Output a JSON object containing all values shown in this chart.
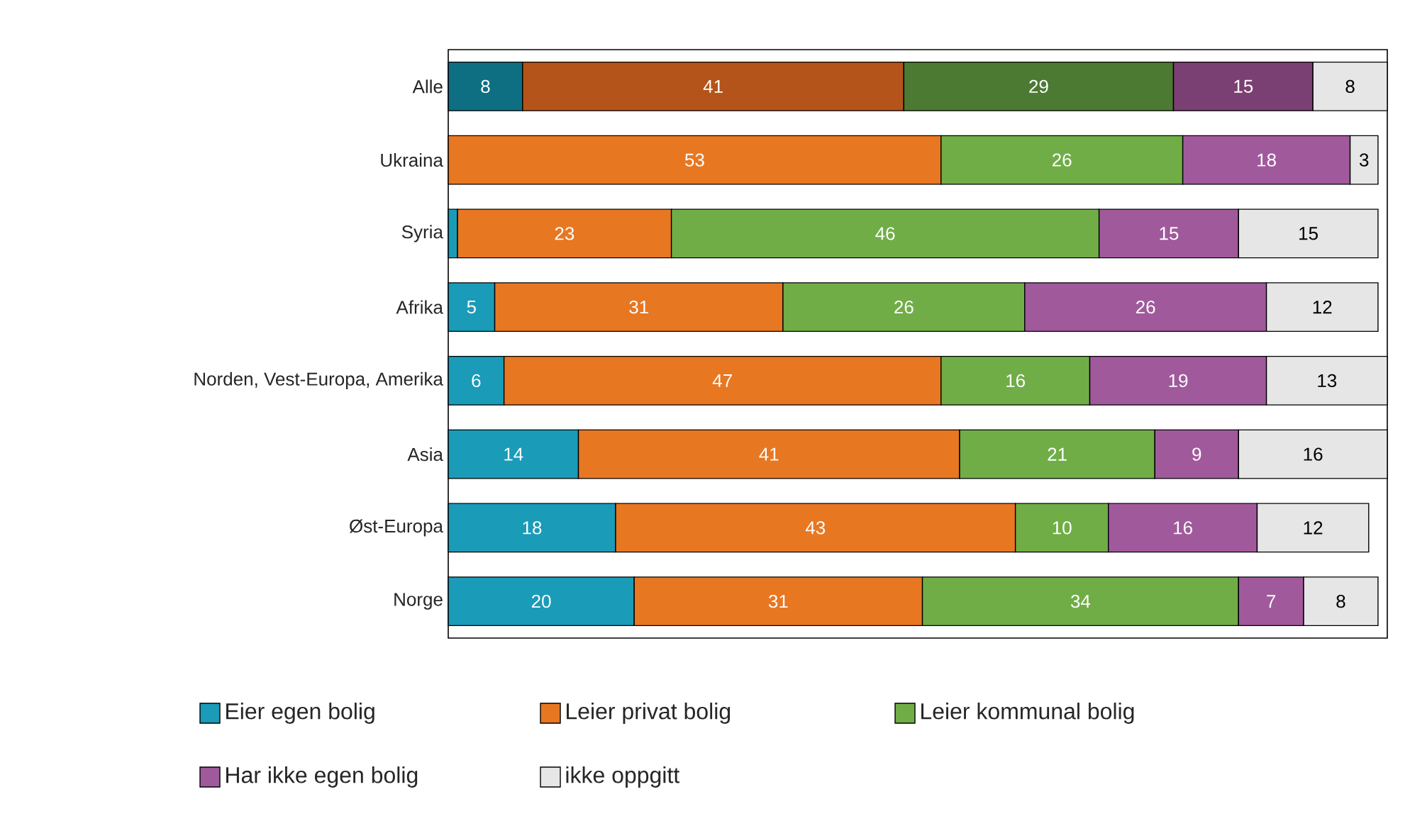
{
  "chart_data": {
    "type": "bar",
    "orientation": "horizontal",
    "stacked": true,
    "legend": "bottom",
    "tick_labels": "y",
    "categories": [
      "Alle",
      "Ukraina",
      "Syria",
      "Afrika",
      "Norden, Vest-Europa, Amerika",
      "Asia",
      "Øst-Europa",
      "Norge"
    ],
    "series": [
      {
        "name": "Eier egen bolig",
        "color": "#1a9bb8",
        "colors": [
          "#0e6f82",
          "#1a9bb8",
          "#1a9bb8",
          "#1a9bb8",
          "#1a9bb8",
          "#1a9bb8",
          "#1a9bb8",
          "#1a9bb8"
        ],
        "values": [
          8,
          null,
          1,
          5,
          6,
          14,
          18,
          20
        ],
        "value_labels": [
          "8",
          null,
          null,
          "5",
          "6",
          "14",
          "18",
          "20"
        ]
      },
      {
        "name": "Leier privat bolig",
        "color": "#e87722",
        "colors": [
          "#b5541a",
          "#e87722",
          "#e87722",
          "#e87722",
          "#e87722",
          "#e87722",
          "#e87722",
          "#e87722"
        ],
        "values": [
          41,
          53,
          23,
          31,
          47,
          41,
          43,
          31
        ],
        "value_labels": [
          "41",
          "53",
          "23",
          "31",
          "47",
          "41",
          "43",
          "31"
        ]
      },
      {
        "name": "Leier kommunal bolig",
        "color": "#70ad47",
        "colors": [
          "#4d7a33",
          "#70ad47",
          "#70ad47",
          "#70ad47",
          "#70ad47",
          "#70ad47",
          "#70ad47",
          "#70ad47"
        ],
        "values": [
          29,
          26,
          46,
          26,
          16,
          21,
          10,
          34
        ],
        "value_labels": [
          "29",
          "26",
          "46",
          "26",
          "16",
          "21",
          "10",
          "34"
        ]
      },
      {
        "name": "Har ikke egen bolig",
        "color": "#a05a9c",
        "colors": [
          "#7a3f73",
          "#a05a9c",
          "#a05a9c",
          "#a05a9c",
          "#a05a9c",
          "#a05a9c",
          "#a05a9c",
          "#a05a9c"
        ],
        "values": [
          15,
          18,
          15,
          26,
          19,
          9,
          16,
          7
        ],
        "value_labels": [
          "15",
          "18",
          "15",
          "26",
          "19",
          "9",
          "16",
          "7"
        ]
      },
      {
        "name": "ikke oppgitt",
        "color": "#e6e6e6",
        "colors": [
          "#e6e6e6",
          "#e6e6e6",
          "#e6e6e6",
          "#e6e6e6",
          "#e6e6e6",
          "#e6e6e6",
          "#e6e6e6",
          "#e6e6e6"
        ],
        "values": [
          8,
          3,
          15,
          12,
          13,
          16,
          12,
          8
        ],
        "value_labels": [
          "8",
          "3",
          "15",
          "12",
          "13",
          "16",
          "12",
          "8"
        ]
      }
    ]
  }
}
